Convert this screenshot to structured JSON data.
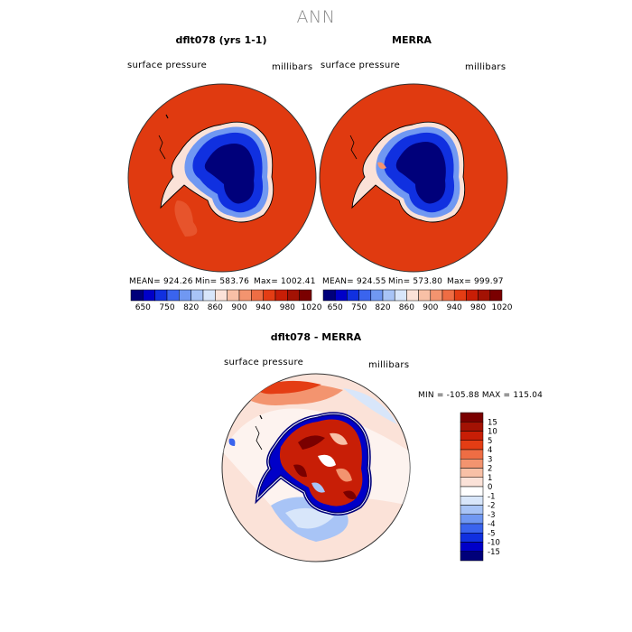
{
  "season": "ANN",
  "panels": [
    {
      "title": "dflt078 (yrs 1-1)",
      "variable": "surface pressure",
      "units": "millibars",
      "stats": {
        "mean": "MEAN= 924.26",
        "min": "Min= 583.76",
        "max": "Max= 1002.41"
      }
    },
    {
      "title": "MERRA",
      "variable": "surface pressure",
      "units": "millibars",
      "stats": {
        "mean": "MEAN= 924.55",
        "min": "Min= 573.80",
        "max": "Max= 999.97"
      }
    }
  ],
  "diff": {
    "title": "dflt078 - MERRA",
    "variable": "surface pressure",
    "units": "millibars",
    "minmax": "MIN = -105.88   MAX = 115.04"
  },
  "chart_data": [
    {
      "type": "heatmap",
      "title": "dflt078 (yrs 1-1)",
      "subtitle": "surface pressure",
      "units": "millibars",
      "mean": 924.26,
      "min": 583.76,
      "max": 1002.41,
      "colorbar_ticks": [
        "650",
        "750",
        "820",
        "860",
        "900",
        "940",
        "980",
        "1020"
      ],
      "colorbar_colors": [
        "#00007a",
        "#0000c8",
        "#1030e0",
        "#3a64ee",
        "#7098f2",
        "#a8c4f6",
        "#d8e6fa",
        "#fbe2d8",
        "#f8c0a6",
        "#f3946f",
        "#ee6d44",
        "#e43d14",
        "#c81e06",
        "#a31204",
        "#7a0000"
      ]
    },
    {
      "type": "heatmap",
      "title": "MERRA",
      "subtitle": "surface pressure",
      "units": "millibars",
      "mean": 924.55,
      "min": 573.8,
      "max": 999.97,
      "colorbar_ticks": [
        "650",
        "750",
        "820",
        "860",
        "900",
        "940",
        "980",
        "1020"
      ],
      "colorbar_colors": [
        "#00007a",
        "#0000c8",
        "#1030e0",
        "#3a64ee",
        "#7098f2",
        "#a8c4f6",
        "#d8e6fa",
        "#fbe2d8",
        "#f8c0a6",
        "#f3946f",
        "#ee6d44",
        "#e43d14",
        "#c81e06",
        "#a31204",
        "#7a0000"
      ]
    },
    {
      "type": "heatmap",
      "title": "dflt078 - MERRA",
      "subtitle": "surface pressure",
      "units": "millibars",
      "min": -105.88,
      "max": 115.04,
      "colorbar_ticks": [
        "15",
        "10",
        "5",
        "4",
        "3",
        "2",
        "1",
        "0",
        "-1",
        "-2",
        "-3",
        "-4",
        "-5",
        "-10",
        "-15"
      ],
      "colorbar_colors": [
        "#7a0000",
        "#a31204",
        "#c81e06",
        "#e43d14",
        "#ee6d44",
        "#f3946f",
        "#f8c0a6",
        "#fbe2d8",
        "#ffffff",
        "#d8e6fa",
        "#a8c4f6",
        "#7098f2",
        "#3a64ee",
        "#1030e0",
        "#0000c8",
        "#00007a"
      ]
    }
  ]
}
